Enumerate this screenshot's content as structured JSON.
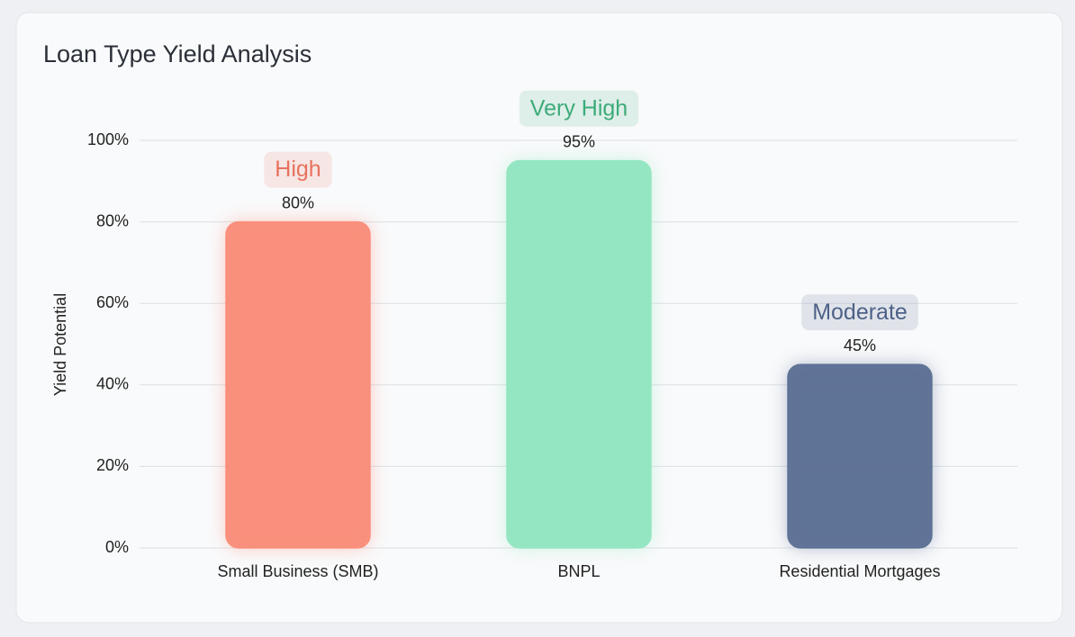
{
  "chart_data": {
    "type": "bar",
    "title": "Loan Type Yield Analysis",
    "y_label": "Yield Potential",
    "categories": [
      "Small Business (SMB)",
      "BNPL",
      "Residential Mortgages"
    ],
    "values": [
      80,
      95,
      45
    ],
    "value_labels": [
      "80%",
      "95%",
      "45%"
    ],
    "badges": [
      "High",
      "Very High",
      "Moderate"
    ],
    "colors": [
      "#f98c78",
      "#90e6c0",
      "#5b6f93"
    ],
    "badge_colors": [
      "#e8725e",
      "#3dab7a",
      "#4e6288"
    ],
    "ylim": [
      0,
      100
    ],
    "yticks": [
      {
        "value": 0,
        "label": "0%"
      },
      {
        "value": 20,
        "label": "20%"
      },
      {
        "value": 40,
        "label": "40%"
      },
      {
        "value": 60,
        "label": "60%"
      },
      {
        "value": 80,
        "label": "80%"
      },
      {
        "value": 100,
        "label": "100%"
      }
    ],
    "grid": true
  }
}
